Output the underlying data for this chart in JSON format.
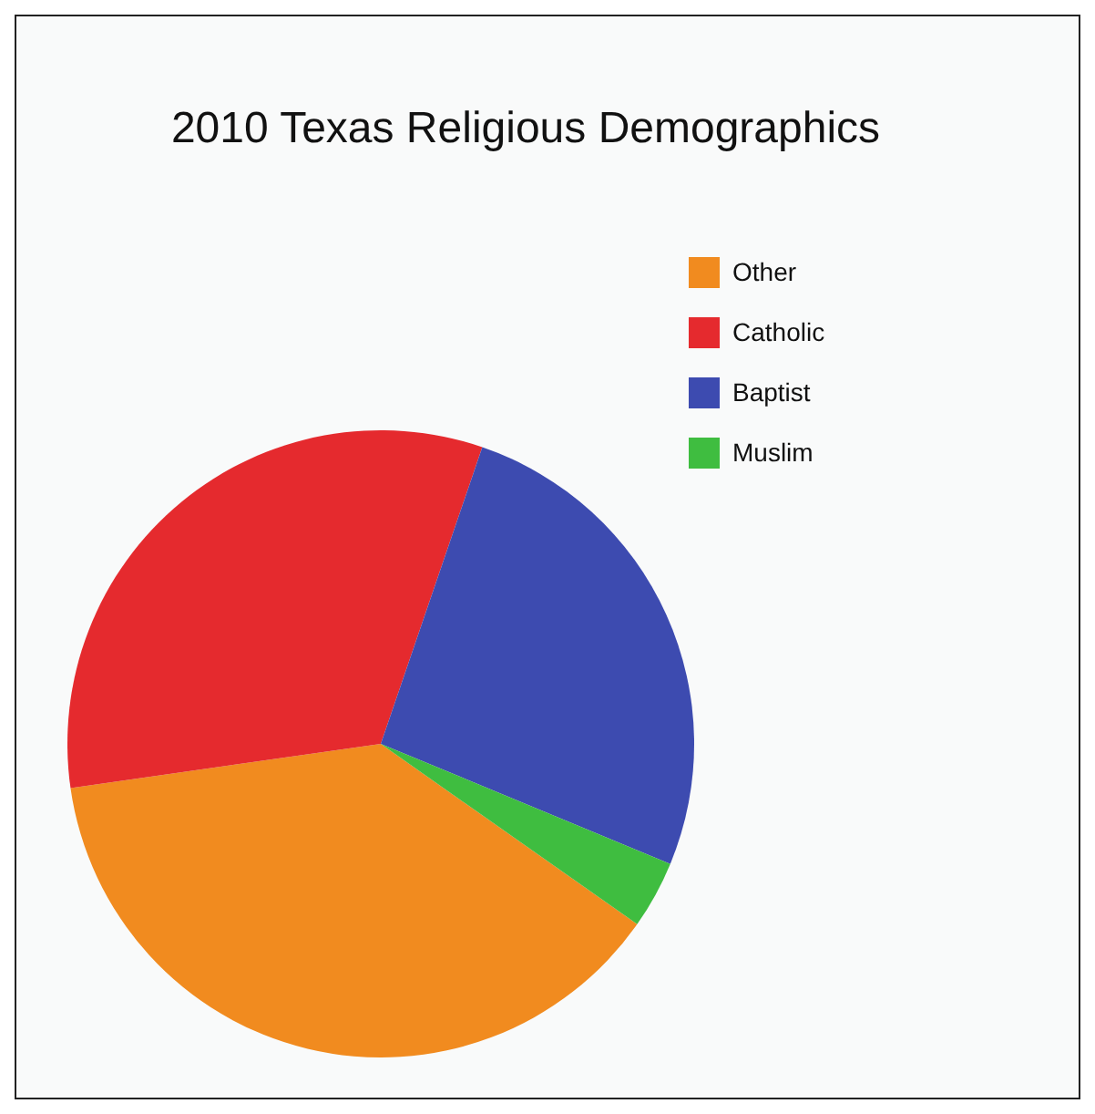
{
  "chart_data": {
    "type": "pie",
    "title": "2010 Texas Religious Demographics",
    "categories": [
      "Other",
      "Catholic",
      "Baptist",
      "Muslim"
    ],
    "values": [
      38,
      32.5,
      26,
      3.5
    ],
    "colors": [
      "#f18b1f",
      "#e52a2e",
      "#3d4bb0",
      "#3fbd40"
    ],
    "legend": "top right"
  }
}
